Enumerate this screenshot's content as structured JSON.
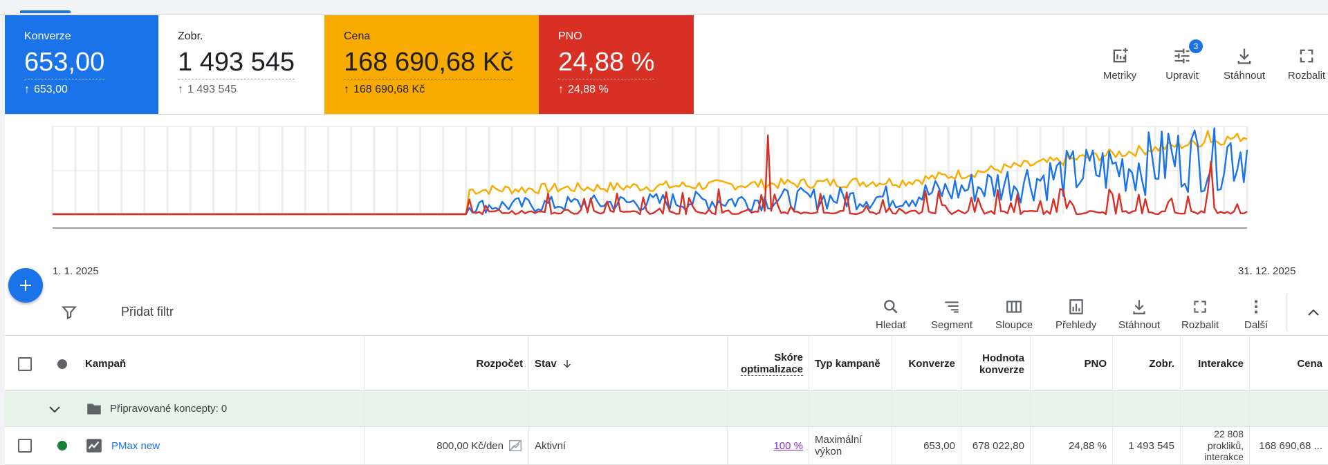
{
  "colors": {
    "konverze": "#1a73e8",
    "cena": "#f9ab00",
    "pno": "#d93025",
    "accent": "#1a73e8"
  },
  "scorecards": [
    {
      "label": "Konverze",
      "value": "653,00",
      "sub": "653,00"
    },
    {
      "label": "Zobr.",
      "value": "1 493 545",
      "sub": "1 493 545"
    },
    {
      "label": "Cena",
      "value": "168 690,68 Kč",
      "sub": "168 690,68 Kč"
    },
    {
      "label": "PNO",
      "value": "24,88 %",
      "sub": "24,88 %"
    }
  ],
  "card_tools": {
    "metrics": "Metriky",
    "edit": "Upravit",
    "edit_badge": "3",
    "download": "Stáhnout",
    "expand": "Rozbalit"
  },
  "chart_data": {
    "type": "line",
    "x_start": "1. 1. 2025",
    "x_end": "31. 12. 2025",
    "series": [
      {
        "color": "#f9ab00"
      },
      {
        "color": "#1a73e8"
      },
      {
        "color": "#d93025"
      }
    ]
  },
  "filter": {
    "add_filter": "Přidat filtr"
  },
  "toolbar": {
    "search": "Hledat",
    "segment": "Segment",
    "columns": "Sloupce",
    "reports": "Přehledy",
    "download": "Stáhnout",
    "expand": "Rozbalit",
    "more": "Další"
  },
  "table": {
    "headers": {
      "campaign": "Kampaň",
      "budget": "Rozpočet",
      "status": "Stav",
      "score_line1": "Skóre",
      "score_line2": "optimalizace",
      "type": "Typ kampaně",
      "conversions": "Konverze",
      "conv_value_line1": "Hodnota",
      "conv_value_line2": "konverze",
      "pno": "PNO",
      "impressions": "Zobr.",
      "interactions": "Interakce",
      "cost": "Cena"
    },
    "draft_row": {
      "label": "Připravované koncepty: 0"
    },
    "rows": [
      {
        "campaign": "PMax new",
        "budget": "800,00 Kč/den",
        "status": "Aktivní",
        "score": "100 %",
        "type_line1": "Maximální",
        "type_line2": "výkon",
        "conversions": "653,00",
        "conv_value": "678 022,80",
        "pno": "24,88 %",
        "impressions": "1 493 545",
        "interactions_line1": "22 808",
        "interactions_line2": "prokliků,",
        "interactions_line3": "interakce",
        "cost": "168 690,68 ..."
      }
    ]
  }
}
